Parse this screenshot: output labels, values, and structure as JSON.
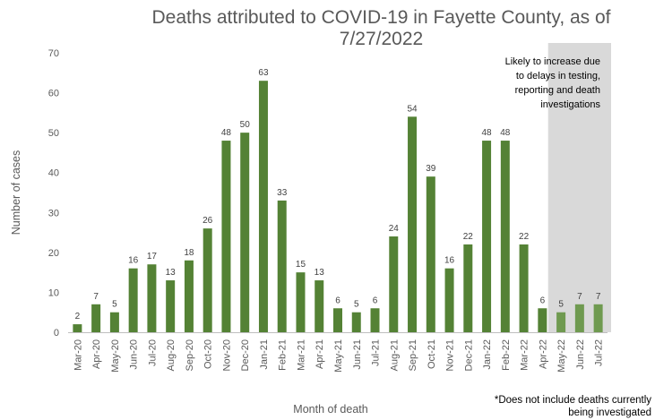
{
  "chart_data": {
    "type": "bar",
    "title": "Deaths attributed to COVID-19 in Fayette County, as of 7/27/2022",
    "xlabel": "Month of death",
    "ylabel": "Number of cases",
    "ylim": [
      0,
      70
    ],
    "yticks": [
      0,
      10,
      20,
      30,
      40,
      50,
      60,
      70
    ],
    "grid": false,
    "categories": [
      "Mar-20",
      "Apr-20",
      "May-20",
      "Jun-20",
      "Jul-20",
      "Aug-20",
      "Sep-20",
      "Oct-20",
      "Nov-20",
      "Dec-20",
      "Jan-21",
      "Feb-21",
      "Mar-21",
      "Apr-21",
      "May-21",
      "Jun-21",
      "Jul-21",
      "Aug-21",
      "Sep-21",
      "Oct-21",
      "Nov-21",
      "Dec-21",
      "Jan-22",
      "Feb-22",
      "Mar-22",
      "Apr-22",
      "May-22",
      "Jun-22",
      "Jul-22"
    ],
    "values": [
      2,
      7,
      5,
      16,
      17,
      13,
      18,
      26,
      48,
      50,
      63,
      33,
      15,
      13,
      6,
      5,
      6,
      24,
      54,
      39,
      16,
      22,
      48,
      48,
      22,
      6,
      5,
      7,
      7
    ],
    "shaded_categories": [
      "May-22",
      "Jun-22",
      "Jul-22"
    ],
    "shaded_note": [
      "Likely to increase due",
      "to delays in testing,",
      "reporting and death",
      "investigations"
    ],
    "colors": {
      "bar": "#548235",
      "bar_shaded": "#6f9a50",
      "shade": "#d9d9d9",
      "text": "#595959"
    },
    "footnote": [
      "*Does not include deaths currently",
      "being investigated"
    ]
  }
}
